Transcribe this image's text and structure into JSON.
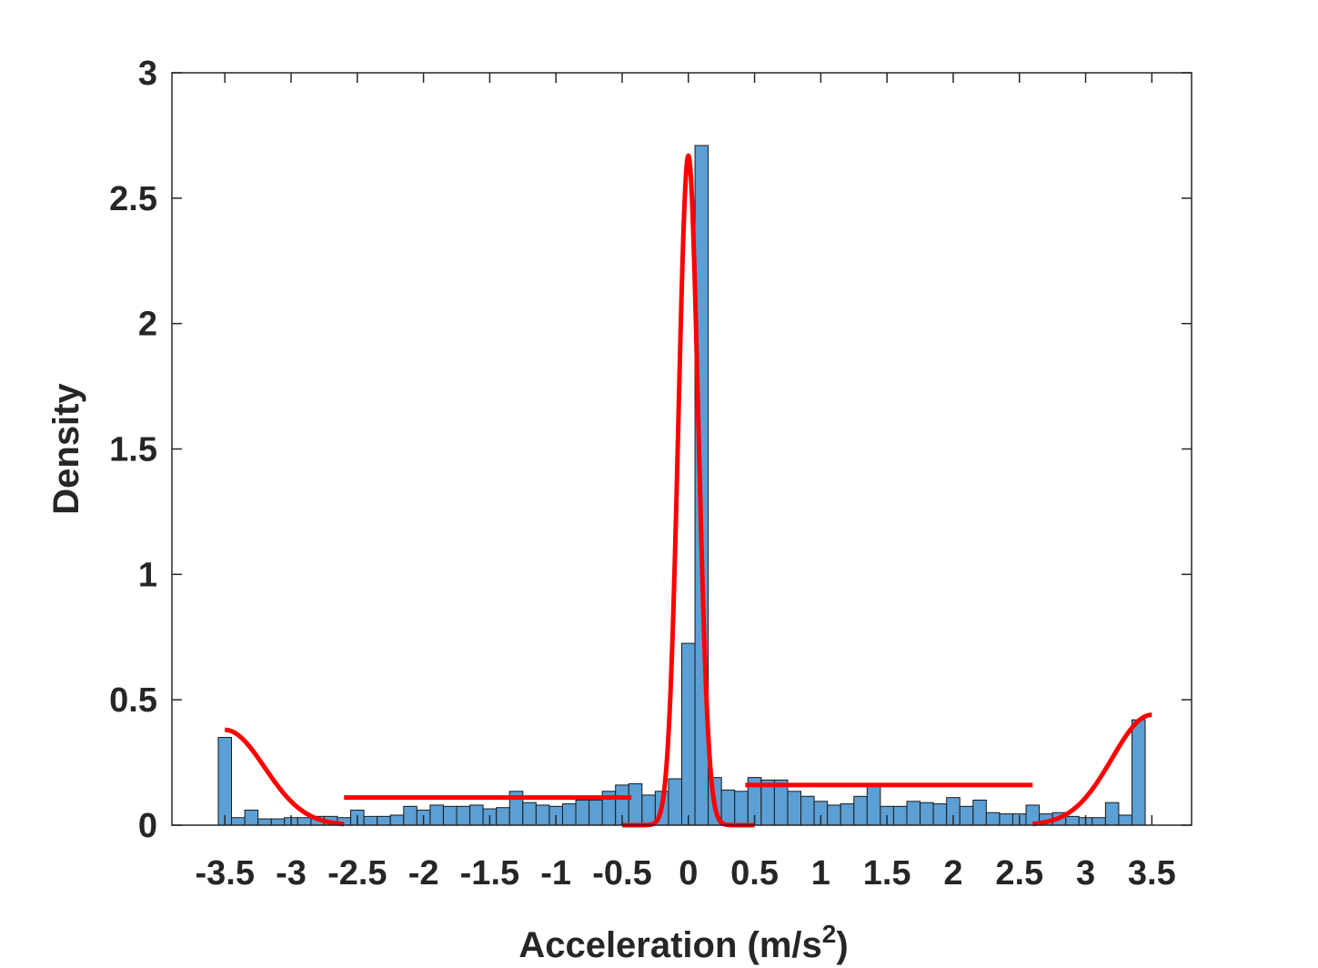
{
  "chart_data": {
    "type": "bar",
    "title": "",
    "xlabel": "Acceleration (m/s",
    "xlabel_superscript": "2",
    "xlabel_close": ")",
    "ylabel": "Density",
    "xlim": [
      -3.9,
      3.8
    ],
    "ylim": [
      0,
      3
    ],
    "grid": false,
    "legend": "none",
    "x_ticks": [
      -3.5,
      -3,
      -2.5,
      -2,
      -1.5,
      -1,
      -0.5,
      0,
      0.5,
      1,
      1.5,
      2,
      2.5,
      3,
      3.5
    ],
    "x_tick_labels": [
      "-3.5",
      "-3",
      "-2.5",
      "-2",
      "-1.5",
      "-1",
      "-0.5",
      "0",
      "0.5",
      "1",
      "1.5",
      "2",
      "2.5",
      "3",
      "3.5"
    ],
    "y_ticks": [
      0,
      0.5,
      1,
      1.5,
      2,
      2.5,
      3
    ],
    "y_tick_labels": [
      "0",
      "0.5",
      "1",
      "1.5",
      "2",
      "2.5",
      "3"
    ],
    "histogram": {
      "bin_start": -3.55,
      "bin_width": 0.1,
      "values": [
        0.35,
        0.03,
        0.06,
        0.025,
        0.025,
        0.03,
        0.03,
        0.035,
        0.035,
        0.03,
        0.06,
        0.035,
        0.035,
        0.04,
        0.075,
        0.06,
        0.08,
        0.075,
        0.075,
        0.08,
        0.065,
        0.07,
        0.135,
        0.09,
        0.08,
        0.075,
        0.085,
        0.1,
        0.1,
        0.135,
        0.16,
        0.165,
        0.12,
        0.135,
        0.185,
        0.725,
        2.71,
        0.19,
        0.14,
        0.135,
        0.19,
        0.18,
        0.18,
        0.135,
        0.115,
        0.095,
        0.08,
        0.085,
        0.115,
        0.165,
        0.075,
        0.075,
        0.095,
        0.09,
        0.085,
        0.11,
        0.075,
        0.1,
        0.05,
        0.045,
        0.045,
        0.08,
        0.045,
        0.05,
        0.035,
        0.03,
        0.03,
        0.09,
        0.04,
        0.42
      ],
      "fill": "#5b9fd4",
      "stroke": "#1a1a1a"
    },
    "fit_curves": {
      "color": "#ff0000",
      "left_tail": {
        "x_start": -3.5,
        "x_end": -2.6,
        "peak": 0.38,
        "mu": -3.5,
        "sigma": 0.3
      },
      "left_plateau": {
        "x_start": -2.6,
        "x_end": -0.43,
        "y": 0.11
      },
      "center": {
        "x_start": -0.5,
        "x_end": 0.5,
        "peak": 2.67,
        "mu": 0.0,
        "sigma": 0.075
      },
      "right_plateau": {
        "x_start": 0.43,
        "x_end": 2.6,
        "y": 0.16
      },
      "right_tail": {
        "x_start": 2.6,
        "x_end": 3.5,
        "peak": 0.44,
        "mu": 3.5,
        "sigma": 0.3
      }
    }
  }
}
